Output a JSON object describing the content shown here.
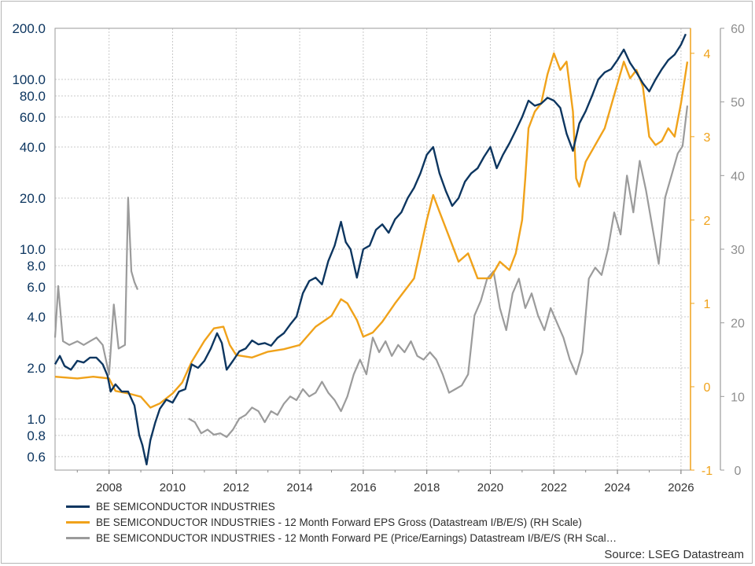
{
  "chart_data": {
    "type": "line",
    "source": "Source: LSEG Datastream",
    "x_ticks": [
      "2008",
      "2010",
      "2012",
      "2014",
      "2016",
      "2018",
      "2020",
      "2022",
      "2024",
      "2026"
    ],
    "x_range": [
      2006.3,
      2026.3
    ],
    "left_axis": {
      "scale": "log",
      "ylim": [
        0.5,
        200
      ],
      "ticks": [
        200.0,
        100.0,
        80.0,
        60.0,
        40.0,
        20.0,
        10.0,
        8.0,
        6.0,
        4.0,
        2.0,
        1.0,
        0.8,
        0.6
      ],
      "tick_labels": [
        "200.0",
        "100.0",
        "80.0",
        "60.0",
        "40.0",
        "20.0",
        "10.0",
        "8.0",
        "6.0",
        "4.0",
        "2.0",
        "1.0",
        "0.8",
        "0.6"
      ],
      "color": "#0d3660"
    },
    "right_axis_eps": {
      "ylim": [
        -1,
        4.3
      ],
      "ticks": [
        -1,
        0,
        1,
        2,
        3,
        4
      ],
      "tick_labels": [
        "-1",
        "0",
        "1",
        "2",
        "3",
        "4"
      ],
      "color": "#f0a21a"
    },
    "right_axis_pe": {
      "ylim": [
        0,
        60
      ],
      "ticks": [
        0,
        10,
        20,
        30,
        40,
        50,
        60
      ],
      "tick_labels": [
        "0",
        "10",
        "20",
        "30",
        "40",
        "50",
        "60"
      ],
      "color": "#9b9b9b"
    },
    "grid": true,
    "legend_position": "bottom",
    "series": [
      {
        "name": "BE SEMICONDUCTOR INDUSTRIES",
        "axis": "left",
        "color": "#0d3660",
        "points": [
          [
            2006.3,
            2.1
          ],
          [
            2006.45,
            2.35
          ],
          [
            2006.6,
            2.05
          ],
          [
            2006.8,
            1.95
          ],
          [
            2007.0,
            2.2
          ],
          [
            2007.2,
            2.15
          ],
          [
            2007.4,
            2.3
          ],
          [
            2007.6,
            2.3
          ],
          [
            2007.8,
            2.1
          ],
          [
            2007.95,
            1.8
          ],
          [
            2008.05,
            1.45
          ],
          [
            2008.2,
            1.6
          ],
          [
            2008.4,
            1.45
          ],
          [
            2008.6,
            1.45
          ],
          [
            2008.8,
            1.2
          ],
          [
            2008.95,
            0.8
          ],
          [
            2009.05,
            0.7
          ],
          [
            2009.18,
            0.54
          ],
          [
            2009.3,
            0.75
          ],
          [
            2009.45,
            0.95
          ],
          [
            2009.6,
            1.15
          ],
          [
            2009.8,
            1.3
          ],
          [
            2010.0,
            1.25
          ],
          [
            2010.2,
            1.45
          ],
          [
            2010.4,
            1.5
          ],
          [
            2010.6,
            2.1
          ],
          [
            2010.8,
            2.0
          ],
          [
            2011.0,
            2.2
          ],
          [
            2011.2,
            2.6
          ],
          [
            2011.4,
            3.2
          ],
          [
            2011.55,
            2.8
          ],
          [
            2011.7,
            1.95
          ],
          [
            2011.9,
            2.2
          ],
          [
            2012.1,
            2.5
          ],
          [
            2012.3,
            2.6
          ],
          [
            2012.5,
            2.9
          ],
          [
            2012.7,
            2.75
          ],
          [
            2012.9,
            2.8
          ],
          [
            2013.1,
            2.7
          ],
          [
            2013.3,
            3.0
          ],
          [
            2013.5,
            3.2
          ],
          [
            2013.7,
            3.6
          ],
          [
            2013.9,
            4.0
          ],
          [
            2014.1,
            5.5
          ],
          [
            2014.3,
            6.5
          ],
          [
            2014.5,
            6.8
          ],
          [
            2014.7,
            6.2
          ],
          [
            2014.9,
            8.5
          ],
          [
            2015.1,
            10.5
          ],
          [
            2015.3,
            14.5
          ],
          [
            2015.45,
            11.0
          ],
          [
            2015.6,
            10.0
          ],
          [
            2015.8,
            6.8
          ],
          [
            2016.0,
            10.0
          ],
          [
            2016.2,
            10.5
          ],
          [
            2016.4,
            13.0
          ],
          [
            2016.6,
            14.0
          ],
          [
            2016.8,
            12.5
          ],
          [
            2017.0,
            15.0
          ],
          [
            2017.2,
            16.5
          ],
          [
            2017.4,
            20.0
          ],
          [
            2017.6,
            23.0
          ],
          [
            2017.8,
            28.0
          ],
          [
            2018.0,
            36.0
          ],
          [
            2018.2,
            40.0
          ],
          [
            2018.4,
            28.0
          ],
          [
            2018.6,
            22.0
          ],
          [
            2018.8,
            18.0
          ],
          [
            2019.0,
            20.0
          ],
          [
            2019.2,
            25.0
          ],
          [
            2019.4,
            28.0
          ],
          [
            2019.6,
            30.0
          ],
          [
            2019.8,
            35.0
          ],
          [
            2020.0,
            40.0
          ],
          [
            2020.2,
            30.0
          ],
          [
            2020.4,
            36.0
          ],
          [
            2020.6,
            42.0
          ],
          [
            2020.8,
            50.0
          ],
          [
            2021.0,
            60.0
          ],
          [
            2021.2,
            75.0
          ],
          [
            2021.4,
            70.0
          ],
          [
            2021.6,
            72.0
          ],
          [
            2021.8,
            78.0
          ],
          [
            2022.0,
            75.0
          ],
          [
            2022.2,
            68.0
          ],
          [
            2022.4,
            48.0
          ],
          [
            2022.6,
            38.0
          ],
          [
            2022.8,
            55.0
          ],
          [
            2023.0,
            65.0
          ],
          [
            2023.2,
            80.0
          ],
          [
            2023.4,
            100.0
          ],
          [
            2023.6,
            110.0
          ],
          [
            2023.8,
            115.0
          ],
          [
            2024.0,
            130.0
          ],
          [
            2024.2,
            150.0
          ],
          [
            2024.4,
            125.0
          ],
          [
            2024.6,
            110.0
          ],
          [
            2024.8,
            95.0
          ],
          [
            2025.0,
            85.0
          ],
          [
            2025.2,
            100.0
          ],
          [
            2025.4,
            115.0
          ],
          [
            2025.6,
            130.0
          ],
          [
            2025.8,
            140.0
          ],
          [
            2026.0,
            160.0
          ],
          [
            2026.15,
            185.0
          ]
        ]
      },
      {
        "name": "BE SEMICONDUCTOR INDUSTRIES - 12 Month Forward EPS Gross (Datastream I/B/E/S) (RH Scale)",
        "axis": "right_eps",
        "color": "#f0a21a",
        "points": [
          [
            2006.3,
            0.12
          ],
          [
            2007.0,
            0.1
          ],
          [
            2007.5,
            0.12
          ],
          [
            2008.0,
            0.1
          ],
          [
            2008.2,
            -0.05
          ],
          [
            2008.6,
            -0.08
          ],
          [
            2009.0,
            -0.12
          ],
          [
            2009.3,
            -0.25
          ],
          [
            2009.6,
            -0.2
          ],
          [
            2010.0,
            -0.08
          ],
          [
            2010.3,
            0.05
          ],
          [
            2010.6,
            0.3
          ],
          [
            2011.0,
            0.55
          ],
          [
            2011.3,
            0.7
          ],
          [
            2011.6,
            0.72
          ],
          [
            2011.8,
            0.5
          ],
          [
            2012.0,
            0.38
          ],
          [
            2012.5,
            0.35
          ],
          [
            2013.0,
            0.42
          ],
          [
            2013.5,
            0.45
          ],
          [
            2014.0,
            0.5
          ],
          [
            2014.5,
            0.72
          ],
          [
            2015.0,
            0.85
          ],
          [
            2015.3,
            1.05
          ],
          [
            2015.5,
            1.0
          ],
          [
            2015.8,
            0.8
          ],
          [
            2016.0,
            0.6
          ],
          [
            2016.3,
            0.65
          ],
          [
            2016.6,
            0.78
          ],
          [
            2017.0,
            1.0
          ],
          [
            2017.3,
            1.15
          ],
          [
            2017.6,
            1.3
          ],
          [
            2018.0,
            2.0
          ],
          [
            2018.2,
            2.3
          ],
          [
            2018.4,
            2.1
          ],
          [
            2018.7,
            1.8
          ],
          [
            2019.0,
            1.5
          ],
          [
            2019.3,
            1.6
          ],
          [
            2019.6,
            1.3
          ],
          [
            2020.0,
            1.3
          ],
          [
            2020.3,
            1.5
          ],
          [
            2020.6,
            1.4
          ],
          [
            2020.8,
            1.6
          ],
          [
            2021.0,
            2.0
          ],
          [
            2021.1,
            2.5
          ],
          [
            2021.2,
            3.1
          ],
          [
            2021.4,
            3.3
          ],
          [
            2021.6,
            3.4
          ],
          [
            2021.8,
            3.75
          ],
          [
            2022.0,
            4.0
          ],
          [
            2022.2,
            3.8
          ],
          [
            2022.4,
            3.9
          ],
          [
            2022.6,
            3.3
          ],
          [
            2022.7,
            2.5
          ],
          [
            2022.8,
            2.4
          ],
          [
            2023.0,
            2.7
          ],
          [
            2023.3,
            2.9
          ],
          [
            2023.6,
            3.1
          ],
          [
            2023.9,
            3.5
          ],
          [
            2024.2,
            3.9
          ],
          [
            2024.4,
            3.7
          ],
          [
            2024.6,
            3.8
          ],
          [
            2024.8,
            3.6
          ],
          [
            2025.0,
            3.0
          ],
          [
            2025.2,
            2.9
          ],
          [
            2025.4,
            2.95
          ],
          [
            2025.6,
            3.1
          ],
          [
            2025.8,
            3.0
          ],
          [
            2026.0,
            3.4
          ],
          [
            2026.2,
            3.9
          ]
        ]
      },
      {
        "name": "BE SEMICONDUCTOR INDUSTRIES - 12 Month Forward PE (Price/Earnings) Datastream I/B/E/S (RH Scal…",
        "axis": "right_pe",
        "color": "#9b9b9b",
        "segments": [
          [
            [
              2006.3,
              18.0
            ],
            [
              2006.4,
              25.0
            ],
            [
              2006.55,
              17.5
            ],
            [
              2006.75,
              17.0
            ],
            [
              2007.0,
              17.5
            ],
            [
              2007.2,
              17.0
            ],
            [
              2007.4,
              17.5
            ],
            [
              2007.6,
              18.0
            ],
            [
              2007.8,
              17.0
            ],
            [
              2008.0,
              13.0
            ],
            [
              2008.15,
              22.5
            ],
            [
              2008.3,
              16.5
            ],
            [
              2008.5,
              17.0
            ],
            [
              2008.6,
              37.0
            ],
            [
              2008.7,
              27.0
            ],
            [
              2008.8,
              25.5
            ],
            [
              2008.9,
              24.5
            ]
          ],
          [
            [
              2010.5,
              7.0
            ],
            [
              2010.7,
              6.5
            ],
            [
              2010.9,
              5.0
            ],
            [
              2011.1,
              5.5
            ],
            [
              2011.3,
              4.8
            ],
            [
              2011.5,
              5.0
            ],
            [
              2011.7,
              4.5
            ],
            [
              2011.9,
              5.5
            ],
            [
              2012.1,
              7.0
            ],
            [
              2012.3,
              7.5
            ],
            [
              2012.5,
              8.5
            ],
            [
              2012.7,
              8.0
            ],
            [
              2012.9,
              6.5
            ],
            [
              2013.1,
              8.0
            ],
            [
              2013.3,
              7.5
            ],
            [
              2013.5,
              9.0
            ],
            [
              2013.7,
              10.0
            ],
            [
              2013.9,
              9.5
            ],
            [
              2014.1,
              11.0
            ],
            [
              2014.3,
              10.0
            ],
            [
              2014.5,
              10.5
            ],
            [
              2014.7,
              12.0
            ],
            [
              2014.9,
              10.5
            ],
            [
              2015.1,
              9.5
            ],
            [
              2015.3,
              8.0
            ],
            [
              2015.5,
              10.0
            ],
            [
              2015.7,
              13.0
            ],
            [
              2015.9,
              15.0
            ],
            [
              2016.1,
              13.0
            ],
            [
              2016.3,
              18.0
            ],
            [
              2016.5,
              16.0
            ],
            [
              2016.7,
              17.5
            ],
            [
              2016.9,
              15.5
            ],
            [
              2017.1,
              17.0
            ],
            [
              2017.3,
              16.0
            ],
            [
              2017.5,
              17.5
            ],
            [
              2017.7,
              15.5
            ],
            [
              2017.9,
              15.0
            ],
            [
              2018.1,
              16.0
            ],
            [
              2018.3,
              15.0
            ],
            [
              2018.5,
              13.0
            ],
            [
              2018.7,
              10.5
            ],
            [
              2018.9,
              11.0
            ],
            [
              2019.1,
              11.5
            ],
            [
              2019.3,
              13.0
            ],
            [
              2019.5,
              21.0
            ],
            [
              2019.7,
              23.0
            ],
            [
              2019.9,
              26.0
            ],
            [
              2020.1,
              27.0
            ],
            [
              2020.3,
              22.0
            ],
            [
              2020.5,
              19.0
            ],
            [
              2020.7,
              24.0
            ],
            [
              2020.9,
              26.0
            ],
            [
              2021.1,
              22.0
            ],
            [
              2021.3,
              24.0
            ],
            [
              2021.5,
              21.0
            ],
            [
              2021.7,
              19.0
            ],
            [
              2021.9,
              22.0
            ],
            [
              2022.1,
              20.0
            ],
            [
              2022.3,
              18.0
            ],
            [
              2022.5,
              15.0
            ],
            [
              2022.7,
              13.0
            ],
            [
              2022.9,
              16.0
            ],
            [
              2023.1,
              26.0
            ],
            [
              2023.3,
              27.5
            ],
            [
              2023.5,
              26.5
            ],
            [
              2023.7,
              30.0
            ],
            [
              2023.9,
              35.0
            ],
            [
              2024.1,
              32.0
            ],
            [
              2024.3,
              40.0
            ],
            [
              2024.5,
              35.0
            ],
            [
              2024.7,
              42.0
            ],
            [
              2024.9,
              38.0
            ],
            [
              2025.1,
              33.0
            ],
            [
              2025.3,
              28.0
            ],
            [
              2025.5,
              37.0
            ],
            [
              2025.7,
              40.0
            ],
            [
              2025.9,
              43.0
            ],
            [
              2026.05,
              44.0
            ],
            [
              2026.2,
              49.5
            ]
          ]
        ]
      }
    ]
  }
}
